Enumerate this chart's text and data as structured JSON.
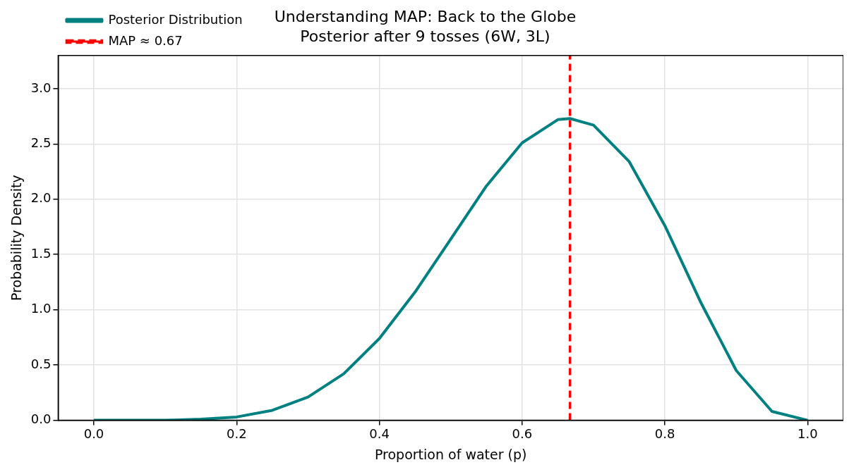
{
  "chart_data": {
    "type": "line",
    "title": "Understanding MAP: Back to the Globe",
    "subtitle": "Posterior after 9 tosses (6W, 3L)",
    "xlabel": "Proportion of water (p)",
    "ylabel": "Probability Density",
    "x": [
      0,
      0.05,
      0.1,
      0.15,
      0.2,
      0.25,
      0.3,
      0.35,
      0.4,
      0.45,
      0.5,
      0.55,
      0.6,
      0.65,
      0.667,
      0.7,
      0.75,
      0.8,
      0.85,
      0.9,
      0.95,
      1.0
    ],
    "series": [
      {
        "name": "Posterior Distribution",
        "color": "#008080",
        "values": [
          0,
          0,
          0,
          0.01,
          0.03,
          0.09,
          0.21,
          0.42,
          0.74,
          1.16,
          1.64,
          2.12,
          2.51,
          2.72,
          2.73,
          2.67,
          2.34,
          1.76,
          1.07,
          0.45,
          0.08,
          0
        ]
      }
    ],
    "ref_lines": [
      {
        "axis": "x",
        "value": 0.667,
        "label": "MAP ≈ 0.67",
        "color": "#ff0000",
        "line_style": "dashed"
      }
    ],
    "xlim": [
      -0.05,
      1.05
    ],
    "ylim": [
      0,
      3.3
    ],
    "xticks": [
      {
        "value": 0,
        "label": "0.0"
      },
      {
        "value": 0.2,
        "label": "0.2"
      },
      {
        "value": 0.4,
        "label": "0.4"
      },
      {
        "value": 0.6,
        "label": "0.6"
      },
      {
        "value": 0.8,
        "label": "0.8"
      },
      {
        "value": 1,
        "label": "1.0"
      }
    ],
    "yticks": [
      {
        "value": 0,
        "label": "0.0"
      },
      {
        "value": 0.5,
        "label": "0.5"
      },
      {
        "value": 1,
        "label": "1.0"
      },
      {
        "value": 1.5,
        "label": "1.5"
      },
      {
        "value": 2,
        "label": "2.0"
      },
      {
        "value": 2.5,
        "label": "2.5"
      },
      {
        "value": 3,
        "label": "3.0"
      }
    ],
    "grid": true,
    "legend": "top left",
    "marker": "none",
    "line_style": "solid"
  }
}
